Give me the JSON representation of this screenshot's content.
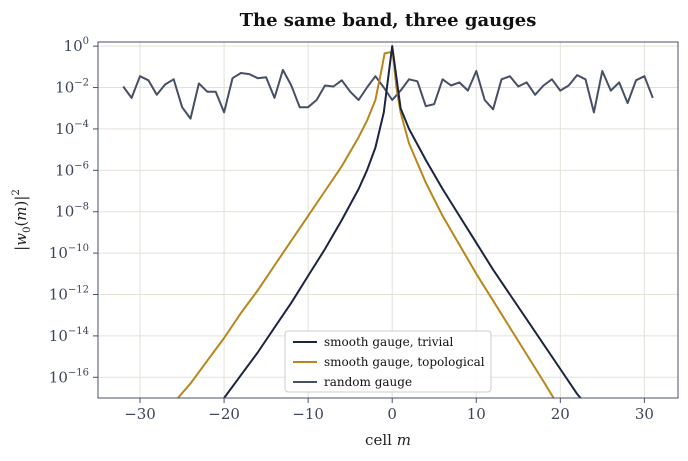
{
  "chart_data": {
    "type": "line",
    "title": "The same band, three gauges",
    "xlabel": "cell m",
    "xlabel_text": "cell",
    "xlabel_var": "m",
    "ylabel": "|w0(m)|^2",
    "yscale": "log",
    "xlim": [
      -35,
      34
    ],
    "ylim_exp": [
      -17,
      0.2
    ],
    "x_ticks": [
      -30,
      -20,
      -10,
      0,
      10,
      20,
      30
    ],
    "x_tick_labels": [
      "−30",
      "−20",
      "−10",
      "0",
      "10",
      "20",
      "30"
    ],
    "y_tick_exponents": [
      0,
      -2,
      -4,
      -6,
      -8,
      -10,
      -12,
      -14,
      -16
    ],
    "y_tick_exp_labels": [
      "0",
      "−2",
      "−4",
      "−6",
      "−8",
      "−10",
      "−12",
      "−14",
      "−16"
    ],
    "y_tick_base": "10",
    "grid": true,
    "legend_position": "lower-center",
    "series": [
      {
        "name": "smooth gauge, trivial",
        "color": "#1b2440",
        "points": [
          [
            -20,
            -17.0
          ],
          [
            -18,
            -15.9
          ],
          [
            -16,
            -14.8
          ],
          [
            -14,
            -13.6
          ],
          [
            -12,
            -12.4
          ],
          [
            -10,
            -11.1
          ],
          [
            -8,
            -9.8
          ],
          [
            -6,
            -8.4
          ],
          [
            -4,
            -6.9
          ],
          [
            -3,
            -6.0
          ],
          [
            -2,
            -4.9
          ],
          [
            -1,
            -3.2
          ],
          [
            0,
            0.0
          ],
          [
            1,
            -3.0
          ],
          [
            2,
            -4.0
          ],
          [
            4,
            -5.5
          ],
          [
            6,
            -6.9
          ],
          [
            8,
            -8.2
          ],
          [
            10,
            -9.5
          ],
          [
            12,
            -10.8
          ],
          [
            14,
            -12.0
          ],
          [
            16,
            -13.2
          ],
          [
            18,
            -14.4
          ],
          [
            20,
            -15.6
          ],
          [
            22,
            -16.8
          ],
          [
            24.5,
            -18.0
          ]
        ]
      },
      {
        "name": "smooth gauge, topological",
        "color": "#b8861b",
        "points": [
          [
            -25.5,
            -17.0
          ],
          [
            -24,
            -16.3
          ],
          [
            -22,
            -15.2
          ],
          [
            -20,
            -14.1
          ],
          [
            -18,
            -12.9
          ],
          [
            -16,
            -11.8
          ],
          [
            -14,
            -10.6
          ],
          [
            -12,
            -9.4
          ],
          [
            -10,
            -8.2
          ],
          [
            -8,
            -7.0
          ],
          [
            -6,
            -5.8
          ],
          [
            -4,
            -4.4
          ],
          [
            -3,
            -3.6
          ],
          [
            -2,
            -2.6
          ],
          [
            -1.3,
            -1.2
          ],
          [
            -0.9,
            -0.35
          ],
          [
            -0.3,
            -0.3
          ],
          [
            0.1,
            -0.4
          ],
          [
            0.5,
            -2.0
          ],
          [
            1,
            -3.2
          ],
          [
            2,
            -4.7
          ],
          [
            4,
            -6.6
          ],
          [
            6,
            -8.2
          ],
          [
            8,
            -9.6
          ],
          [
            10,
            -11.0
          ],
          [
            12,
            -12.3
          ],
          [
            14,
            -13.6
          ],
          [
            16,
            -14.9
          ],
          [
            18,
            -16.2
          ],
          [
            19.2,
            -17.0
          ]
        ]
      },
      {
        "name": "random gauge",
        "color": "#464f66",
        "points": [
          [
            -32,
            -1.95
          ],
          [
            -31,
            -2.5
          ],
          [
            -30,
            -1.45
          ],
          [
            -29,
            -1.65
          ],
          [
            -28,
            -2.35
          ],
          [
            -27,
            -1.85
          ],
          [
            -26,
            -1.6
          ],
          [
            -25,
            -2.95
          ],
          [
            -24,
            -3.5
          ],
          [
            -23,
            -1.8
          ],
          [
            -22,
            -2.2
          ],
          [
            -21,
            -2.2
          ],
          [
            -20,
            -3.2
          ],
          [
            -19,
            -1.55
          ],
          [
            -18,
            -1.3
          ],
          [
            -17,
            -1.35
          ],
          [
            -16,
            -1.55
          ],
          [
            -15,
            -1.5
          ],
          [
            -14,
            -2.5
          ],
          [
            -13,
            -1.15
          ],
          [
            -12,
            -1.9
          ],
          [
            -11,
            -2.95
          ],
          [
            -10,
            -2.95
          ],
          [
            -9,
            -2.6
          ],
          [
            -8,
            -1.9
          ],
          [
            -7,
            -1.95
          ],
          [
            -6,
            -1.65
          ],
          [
            -5,
            -2.2
          ],
          [
            -4,
            -2.6
          ],
          [
            -3,
            -2.0
          ],
          [
            -2,
            -1.45
          ],
          [
            -1,
            -2.0
          ],
          [
            0,
            -2.6
          ],
          [
            1,
            -2.15
          ],
          [
            2,
            -1.6
          ],
          [
            3,
            -1.7
          ],
          [
            4,
            -2.9
          ],
          [
            5,
            -2.8
          ],
          [
            6,
            -1.6
          ],
          [
            7,
            -1.9
          ],
          [
            8,
            -1.75
          ],
          [
            9,
            -2.15
          ],
          [
            10,
            -1.2
          ],
          [
            11,
            -2.6
          ],
          [
            12,
            -3.05
          ],
          [
            13,
            -1.6
          ],
          [
            14,
            -1.45
          ],
          [
            15,
            -1.95
          ],
          [
            16,
            -1.75
          ],
          [
            17,
            -2.35
          ],
          [
            18,
            -1.9
          ],
          [
            19,
            -1.6
          ],
          [
            20,
            -2.15
          ],
          [
            21,
            -1.9
          ],
          [
            22,
            -1.4
          ],
          [
            23,
            -1.6
          ],
          [
            24,
            -3.2
          ],
          [
            25,
            -1.2
          ],
          [
            26,
            -2.15
          ],
          [
            27,
            -1.75
          ],
          [
            28,
            -2.75
          ],
          [
            29,
            -1.65
          ],
          [
            30,
            -1.45
          ],
          [
            31,
            -2.5
          ]
        ]
      }
    ]
  }
}
